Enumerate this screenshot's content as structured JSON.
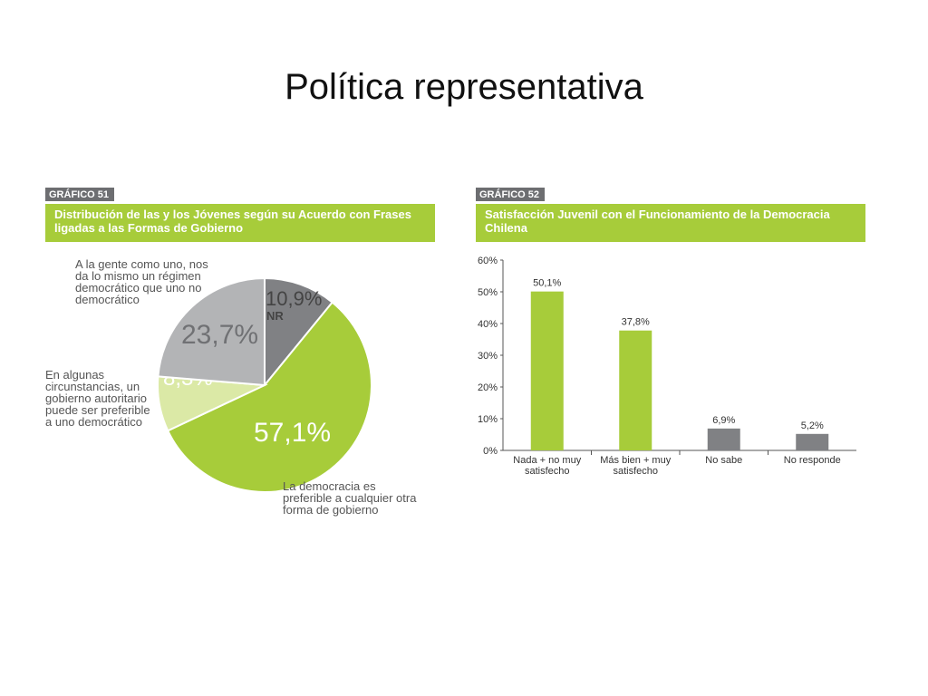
{
  "slide": {
    "title": "Política representativa"
  },
  "colors": {
    "green": "#a7cc3a",
    "light_green": "#dbe9a6",
    "gray": "#808184",
    "light_gray": "#b3b4b6",
    "tag_gray": "#6d6e71"
  },
  "chart_data": [
    {
      "type": "pie",
      "tag": "GRÁFICO 51",
      "title": "Distribución de las y los Jóvenes según su Acuerdo con Frases ligadas a las Formas de Gobierno",
      "slices": [
        {
          "value": 10.9,
          "label": "10,9%",
          "sublabel": "NR",
          "color": "#808184"
        },
        {
          "value": 57.1,
          "label": "57,1%",
          "description": "La democracia es preferible a cualquier otra forma de gobierno",
          "color": "#a7cc3a"
        },
        {
          "value": 8.3,
          "label": "8,3%",
          "description": "En algunas circunstancias, un gobierno autoritario puede ser preferible a uno democrático",
          "color": "#dbe9a6"
        },
        {
          "value": 23.7,
          "label": "23,7%",
          "description": "A la gente como uno, nos da lo mismo un régimen democrático que uno no democrático",
          "color": "#b3b4b6"
        }
      ]
    },
    {
      "type": "bar",
      "tag": "GRÁFICO 52",
      "title": "Satisfacción Juvenil con el Funcionamiento de la Democracia Chilena",
      "categories": [
        "Nada + no muy satisfecho",
        "Más bien + muy satisfecho",
        "No sabe",
        "No responde"
      ],
      "values": [
        50.1,
        37.8,
        6.9,
        5.2
      ],
      "value_labels": [
        "50,1%",
        "37,8%",
        "6,9%",
        "5,2%"
      ],
      "bar_colors": [
        "#a7cc3a",
        "#a7cc3a",
        "#808184",
        "#808184"
      ],
      "ylim": [
        0,
        60
      ],
      "yticks": [
        "0%",
        "10%",
        "20%",
        "30%",
        "40%",
        "50%",
        "60%"
      ]
    }
  ]
}
